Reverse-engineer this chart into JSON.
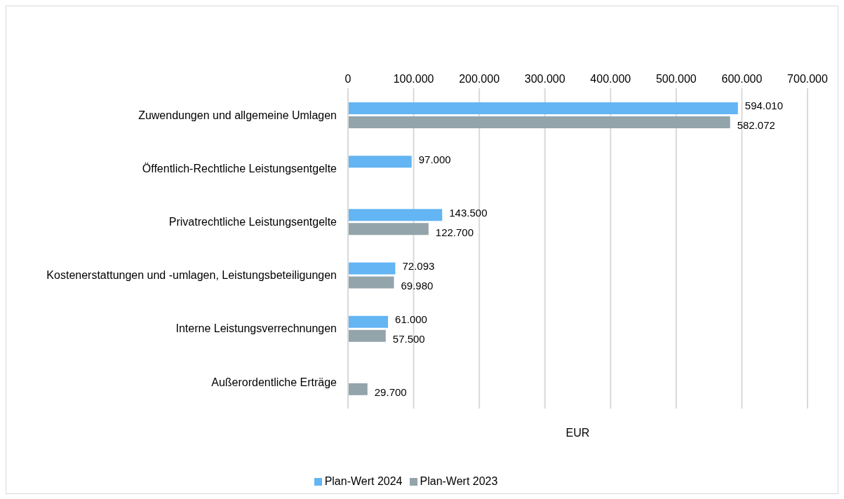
{
  "chart_data": {
    "type": "bar",
    "orientation": "horizontal",
    "xlabel": "EUR",
    "categories": [
      "Zuwendungen und allgemeine Umlagen",
      "Öffentlich-Rechtliche Leistungsentgelte",
      "Privatrechtliche Leistungsentgelte",
      "Kostenerstattungen und -umlagen, Leistungsbeteiligungen",
      "Interne Leistungsverrechnungen",
      "Außerordentliche Erträge"
    ],
    "series": [
      {
        "name": "Plan-Wert 2024",
        "color": "#63b5f3",
        "values": [
          594010,
          97000,
          143500,
          72093,
          61000,
          null
        ],
        "value_labels": [
          "594.010",
          "97.000",
          "143.500",
          "72.093",
          "61.000",
          null
        ]
      },
      {
        "name": "Plan-Wert 2023",
        "color": "#93a4ab",
        "values": [
          582072,
          null,
          122700,
          69980,
          57500,
          29700
        ],
        "value_labels": [
          "582.072",
          null,
          "122.700",
          "69.980",
          "57.500",
          "29.700"
        ]
      }
    ],
    "xlim": [
      0,
      700000
    ],
    "xticks": [
      0,
      {
        "value": 100000,
        "label": "100.000"
      },
      {
        "value": 200000,
        "label": "200.000"
      },
      {
        "value": 300000,
        "label": "300.000"
      },
      {
        "value": 400000,
        "label": "400.000"
      },
      {
        "value": 500000,
        "label": "500.000"
      },
      {
        "value": 600000,
        "label": "600.000"
      },
      {
        "value": 700000,
        "label": "700.000"
      }
    ],
    "grid": "x",
    "legend": "bottom"
  }
}
